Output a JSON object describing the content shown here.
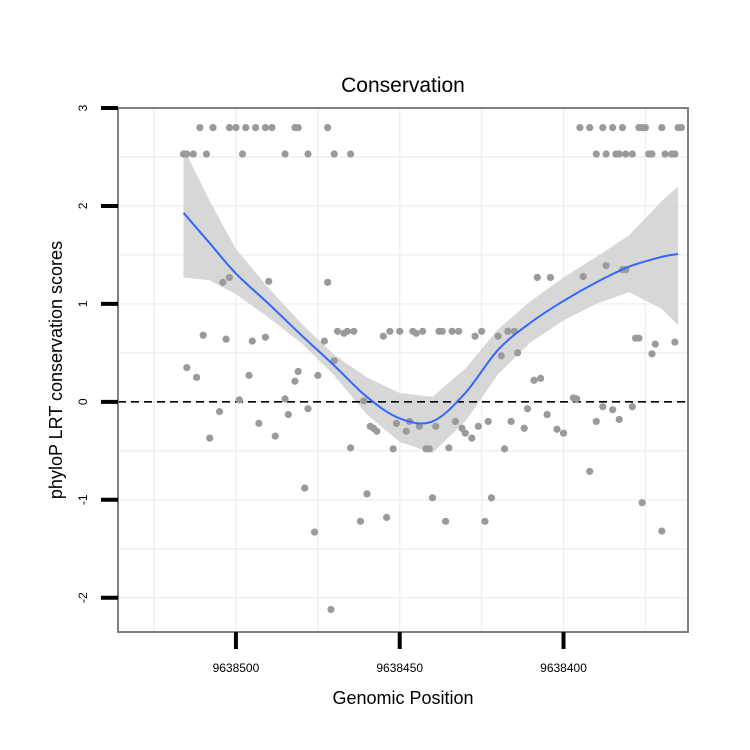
{
  "chart_data": {
    "type": "scatter",
    "title": "Conservation",
    "xlabel": "Genomic Position",
    "ylabel": "phyloP LRT conservation scores",
    "xlim": [
      9638536,
      9638362
    ],
    "ylim": [
      -2.35,
      3.0
    ],
    "x_reversed": true,
    "xticks": [
      9638500,
      9638450,
      9638400
    ],
    "yticks": [
      -2,
      -1,
      0,
      1,
      2,
      3
    ],
    "grid": true,
    "reference_line": {
      "y": 0,
      "style": "dashed"
    },
    "colors": {
      "points": "#9a9a9a",
      "smooth": "#3366ff",
      "band": "#d3d3d3",
      "refline": "#000000",
      "panel_border": "#808080",
      "grid": "#f0f0f0"
    },
    "points": [
      {
        "x": 9638516,
        "y": 2.53
      },
      {
        "x": 9638515,
        "y": 2.53
      },
      {
        "x": 9638513,
        "y": 2.53
      },
      {
        "x": 9638511,
        "y": 2.8
      },
      {
        "x": 9638509,
        "y": 2.53
      },
      {
        "x": 9638507,
        "y": 2.8
      },
      {
        "x": 9638502,
        "y": 2.8
      },
      {
        "x": 9638500,
        "y": 2.8
      },
      {
        "x": 9638498,
        "y": 2.53
      },
      {
        "x": 9638497,
        "y": 2.8
      },
      {
        "x": 9638494,
        "y": 2.8
      },
      {
        "x": 9638491,
        "y": 2.8
      },
      {
        "x": 9638489,
        "y": 2.8
      },
      {
        "x": 9638485,
        "y": 2.53
      },
      {
        "x": 9638482,
        "y": 2.8
      },
      {
        "x": 9638481,
        "y": 2.8
      },
      {
        "x": 9638478,
        "y": 2.53
      },
      {
        "x": 9638472,
        "y": 2.8
      },
      {
        "x": 9638470,
        "y": 2.53
      },
      {
        "x": 9638465,
        "y": 2.53
      },
      {
        "x": 9638395,
        "y": 2.8
      },
      {
        "x": 9638392,
        "y": 2.8
      },
      {
        "x": 9638390,
        "y": 2.53
      },
      {
        "x": 9638387,
        "y": 2.53
      },
      {
        "x": 9638385,
        "y": 2.8
      },
      {
        "x": 9638383,
        "y": 2.53
      },
      {
        "x": 9638381,
        "y": 2.53
      },
      {
        "x": 9638379,
        "y": 2.53
      },
      {
        "x": 9638377,
        "y": 2.8
      },
      {
        "x": 9638375,
        "y": 2.8
      },
      {
        "x": 9638373,
        "y": 2.53
      },
      {
        "x": 9638370,
        "y": 2.8
      },
      {
        "x": 9638367,
        "y": 2.53
      },
      {
        "x": 9638364,
        "y": 2.8
      },
      {
        "x": 9638388,
        "y": 2.8
      },
      {
        "x": 9638382,
        "y": 2.8
      },
      {
        "x": 9638376,
        "y": 2.8
      },
      {
        "x": 9638366,
        "y": 2.53
      },
      {
        "x": 9638374,
        "y": 2.53
      },
      {
        "x": 9638369,
        "y": 2.53
      },
      {
        "x": 9638365,
        "y": 2.8
      },
      {
        "x": 9638384,
        "y": 2.53
      },
      {
        "x": 9638515,
        "y": 0.35
      },
      {
        "x": 9638512,
        "y": 0.25
      },
      {
        "x": 9638510,
        "y": 0.68
      },
      {
        "x": 9638508,
        "y": -0.37
      },
      {
        "x": 9638505,
        "y": -0.1
      },
      {
        "x": 9638504,
        "y": 1.22
      },
      {
        "x": 9638503,
        "y": 0.64
      },
      {
        "x": 9638502,
        "y": 1.27
      },
      {
        "x": 9638499,
        "y": 0.02
      },
      {
        "x": 9638496,
        "y": 0.27
      },
      {
        "x": 9638495,
        "y": 0.62
      },
      {
        "x": 9638493,
        "y": -0.22
      },
      {
        "x": 9638491,
        "y": 0.66
      },
      {
        "x": 9638490,
        "y": 1.23
      },
      {
        "x": 9638488,
        "y": -0.35
      },
      {
        "x": 9638485,
        "y": 0.03
      },
      {
        "x": 9638484,
        "y": -0.13
      },
      {
        "x": 9638482,
        "y": 0.21
      },
      {
        "x": 9638481,
        "y": 0.31
      },
      {
        "x": 9638479,
        "y": -0.88
      },
      {
        "x": 9638478,
        "y": -0.07
      },
      {
        "x": 9638476,
        "y": -1.33
      },
      {
        "x": 9638475,
        "y": 0.27
      },
      {
        "x": 9638473,
        "y": 0.62
      },
      {
        "x": 9638472,
        "y": 1.22
      },
      {
        "x": 9638471,
        "y": -2.12
      },
      {
        "x": 9638470,
        "y": 0.42
      },
      {
        "x": 9638469,
        "y": 0.72
      },
      {
        "x": 9638467,
        "y": 0.7
      },
      {
        "x": 9638466,
        "y": 0.72
      },
      {
        "x": 9638465,
        "y": -0.47
      },
      {
        "x": 9638464,
        "y": 0.72
      },
      {
        "x": 9638462,
        "y": -1.22
      },
      {
        "x": 9638461,
        "y": 0.01
      },
      {
        "x": 9638460,
        "y": -0.94
      },
      {
        "x": 9638459,
        "y": -0.25
      },
      {
        "x": 9638458,
        "y": -0.27
      },
      {
        "x": 9638457,
        "y": -0.3
      },
      {
        "x": 9638455,
        "y": 0.67
      },
      {
        "x": 9638454,
        "y": -1.18
      },
      {
        "x": 9638453,
        "y": 0.72
      },
      {
        "x": 9638452,
        "y": -0.48
      },
      {
        "x": 9638451,
        "y": -0.22
      },
      {
        "x": 9638450,
        "y": 0.72
      },
      {
        "x": 9638448,
        "y": -0.3
      },
      {
        "x": 9638447,
        "y": -0.2
      },
      {
        "x": 9638446,
        "y": 0.72
      },
      {
        "x": 9638445,
        "y": 0.7
      },
      {
        "x": 9638444,
        "y": -0.25
      },
      {
        "x": 9638443,
        "y": 0.72
      },
      {
        "x": 9638442,
        "y": -0.48
      },
      {
        "x": 9638441,
        "y": -0.48
      },
      {
        "x": 9638440,
        "y": -0.98
      },
      {
        "x": 9638439,
        "y": -0.25
      },
      {
        "x": 9638438,
        "y": 0.72
      },
      {
        "x": 9638437,
        "y": 0.72
      },
      {
        "x": 9638436,
        "y": -1.22
      },
      {
        "x": 9638435,
        "y": -0.47
      },
      {
        "x": 9638434,
        "y": 0.72
      },
      {
        "x": 9638433,
        "y": -0.2
      },
      {
        "x": 9638432,
        "y": 0.72
      },
      {
        "x": 9638431,
        "y": -0.27
      },
      {
        "x": 9638430,
        "y": -0.32
      },
      {
        "x": 9638428,
        "y": -0.37
      },
      {
        "x": 9638427,
        "y": 0.67
      },
      {
        "x": 9638426,
        "y": -0.25
      },
      {
        "x": 9638425,
        "y": 0.72
      },
      {
        "x": 9638424,
        "y": -1.22
      },
      {
        "x": 9638423,
        "y": -0.2
      },
      {
        "x": 9638422,
        "y": -0.98
      },
      {
        "x": 9638420,
        "y": 0.67
      },
      {
        "x": 9638419,
        "y": 0.47
      },
      {
        "x": 9638418,
        "y": -0.48
      },
      {
        "x": 9638417,
        "y": 0.72
      },
      {
        "x": 9638416,
        "y": -0.2
      },
      {
        "x": 9638415,
        "y": 0.72
      },
      {
        "x": 9638414,
        "y": 0.5
      },
      {
        "x": 9638412,
        "y": -0.27
      },
      {
        "x": 9638411,
        "y": -0.07
      },
      {
        "x": 9638409,
        "y": 0.22
      },
      {
        "x": 9638408,
        "y": 1.27
      },
      {
        "x": 9638407,
        "y": 0.24
      },
      {
        "x": 9638405,
        "y": -0.13
      },
      {
        "x": 9638404,
        "y": 1.27
      },
      {
        "x": 9638402,
        "y": -0.28
      },
      {
        "x": 9638400,
        "y": -0.32
      },
      {
        "x": 9638397,
        "y": 0.04
      },
      {
        "x": 9638396,
        "y": 0.03
      },
      {
        "x": 9638394,
        "y": 1.28
      },
      {
        "x": 9638392,
        "y": -0.71
      },
      {
        "x": 9638390,
        "y": -0.2
      },
      {
        "x": 9638388,
        "y": -0.05
      },
      {
        "x": 9638387,
        "y": 1.39
      },
      {
        "x": 9638385,
        "y": -0.08
      },
      {
        "x": 9638383,
        "y": -0.18
      },
      {
        "x": 9638382,
        "y": 1.35
      },
      {
        "x": 9638381,
        "y": 1.35
      },
      {
        "x": 9638379,
        "y": -0.05
      },
      {
        "x": 9638378,
        "y": 0.65
      },
      {
        "x": 9638377,
        "y": 0.65
      },
      {
        "x": 9638376,
        "y": -1.03
      },
      {
        "x": 9638373,
        "y": 0.49
      },
      {
        "x": 9638372,
        "y": 0.59
      },
      {
        "x": 9638370,
        "y": -1.32
      },
      {
        "x": 9638366,
        "y": 0.61
      }
    ],
    "smooth": {
      "x": [
        9638516,
        9638508,
        9638500,
        9638490,
        9638480,
        9638470,
        9638460,
        9638450,
        9638440,
        9638430,
        9638420,
        9638410,
        9638400,
        9638390,
        9638380,
        9638370,
        9638365
      ],
      "y": [
        1.93,
        1.62,
        1.31,
        1.0,
        0.68,
        0.37,
        0.05,
        -0.17,
        -0.2,
        0.09,
        0.53,
        0.81,
        1.03,
        1.22,
        1.38,
        1.48,
        1.51
      ],
      "ymin": [
        1.27,
        1.24,
        1.1,
        0.86,
        0.6,
        0.27,
        -0.13,
        -0.41,
        -0.52,
        -0.2,
        0.28,
        0.61,
        0.83,
        1.0,
        1.12,
        0.95,
        0.78
      ],
      "ymax": [
        2.59,
        2.05,
        1.56,
        1.16,
        0.8,
        0.48,
        0.25,
        0.09,
        0.05,
        0.34,
        0.74,
        1.03,
        1.27,
        1.48,
        1.7,
        2.05,
        2.2
      ]
    }
  }
}
